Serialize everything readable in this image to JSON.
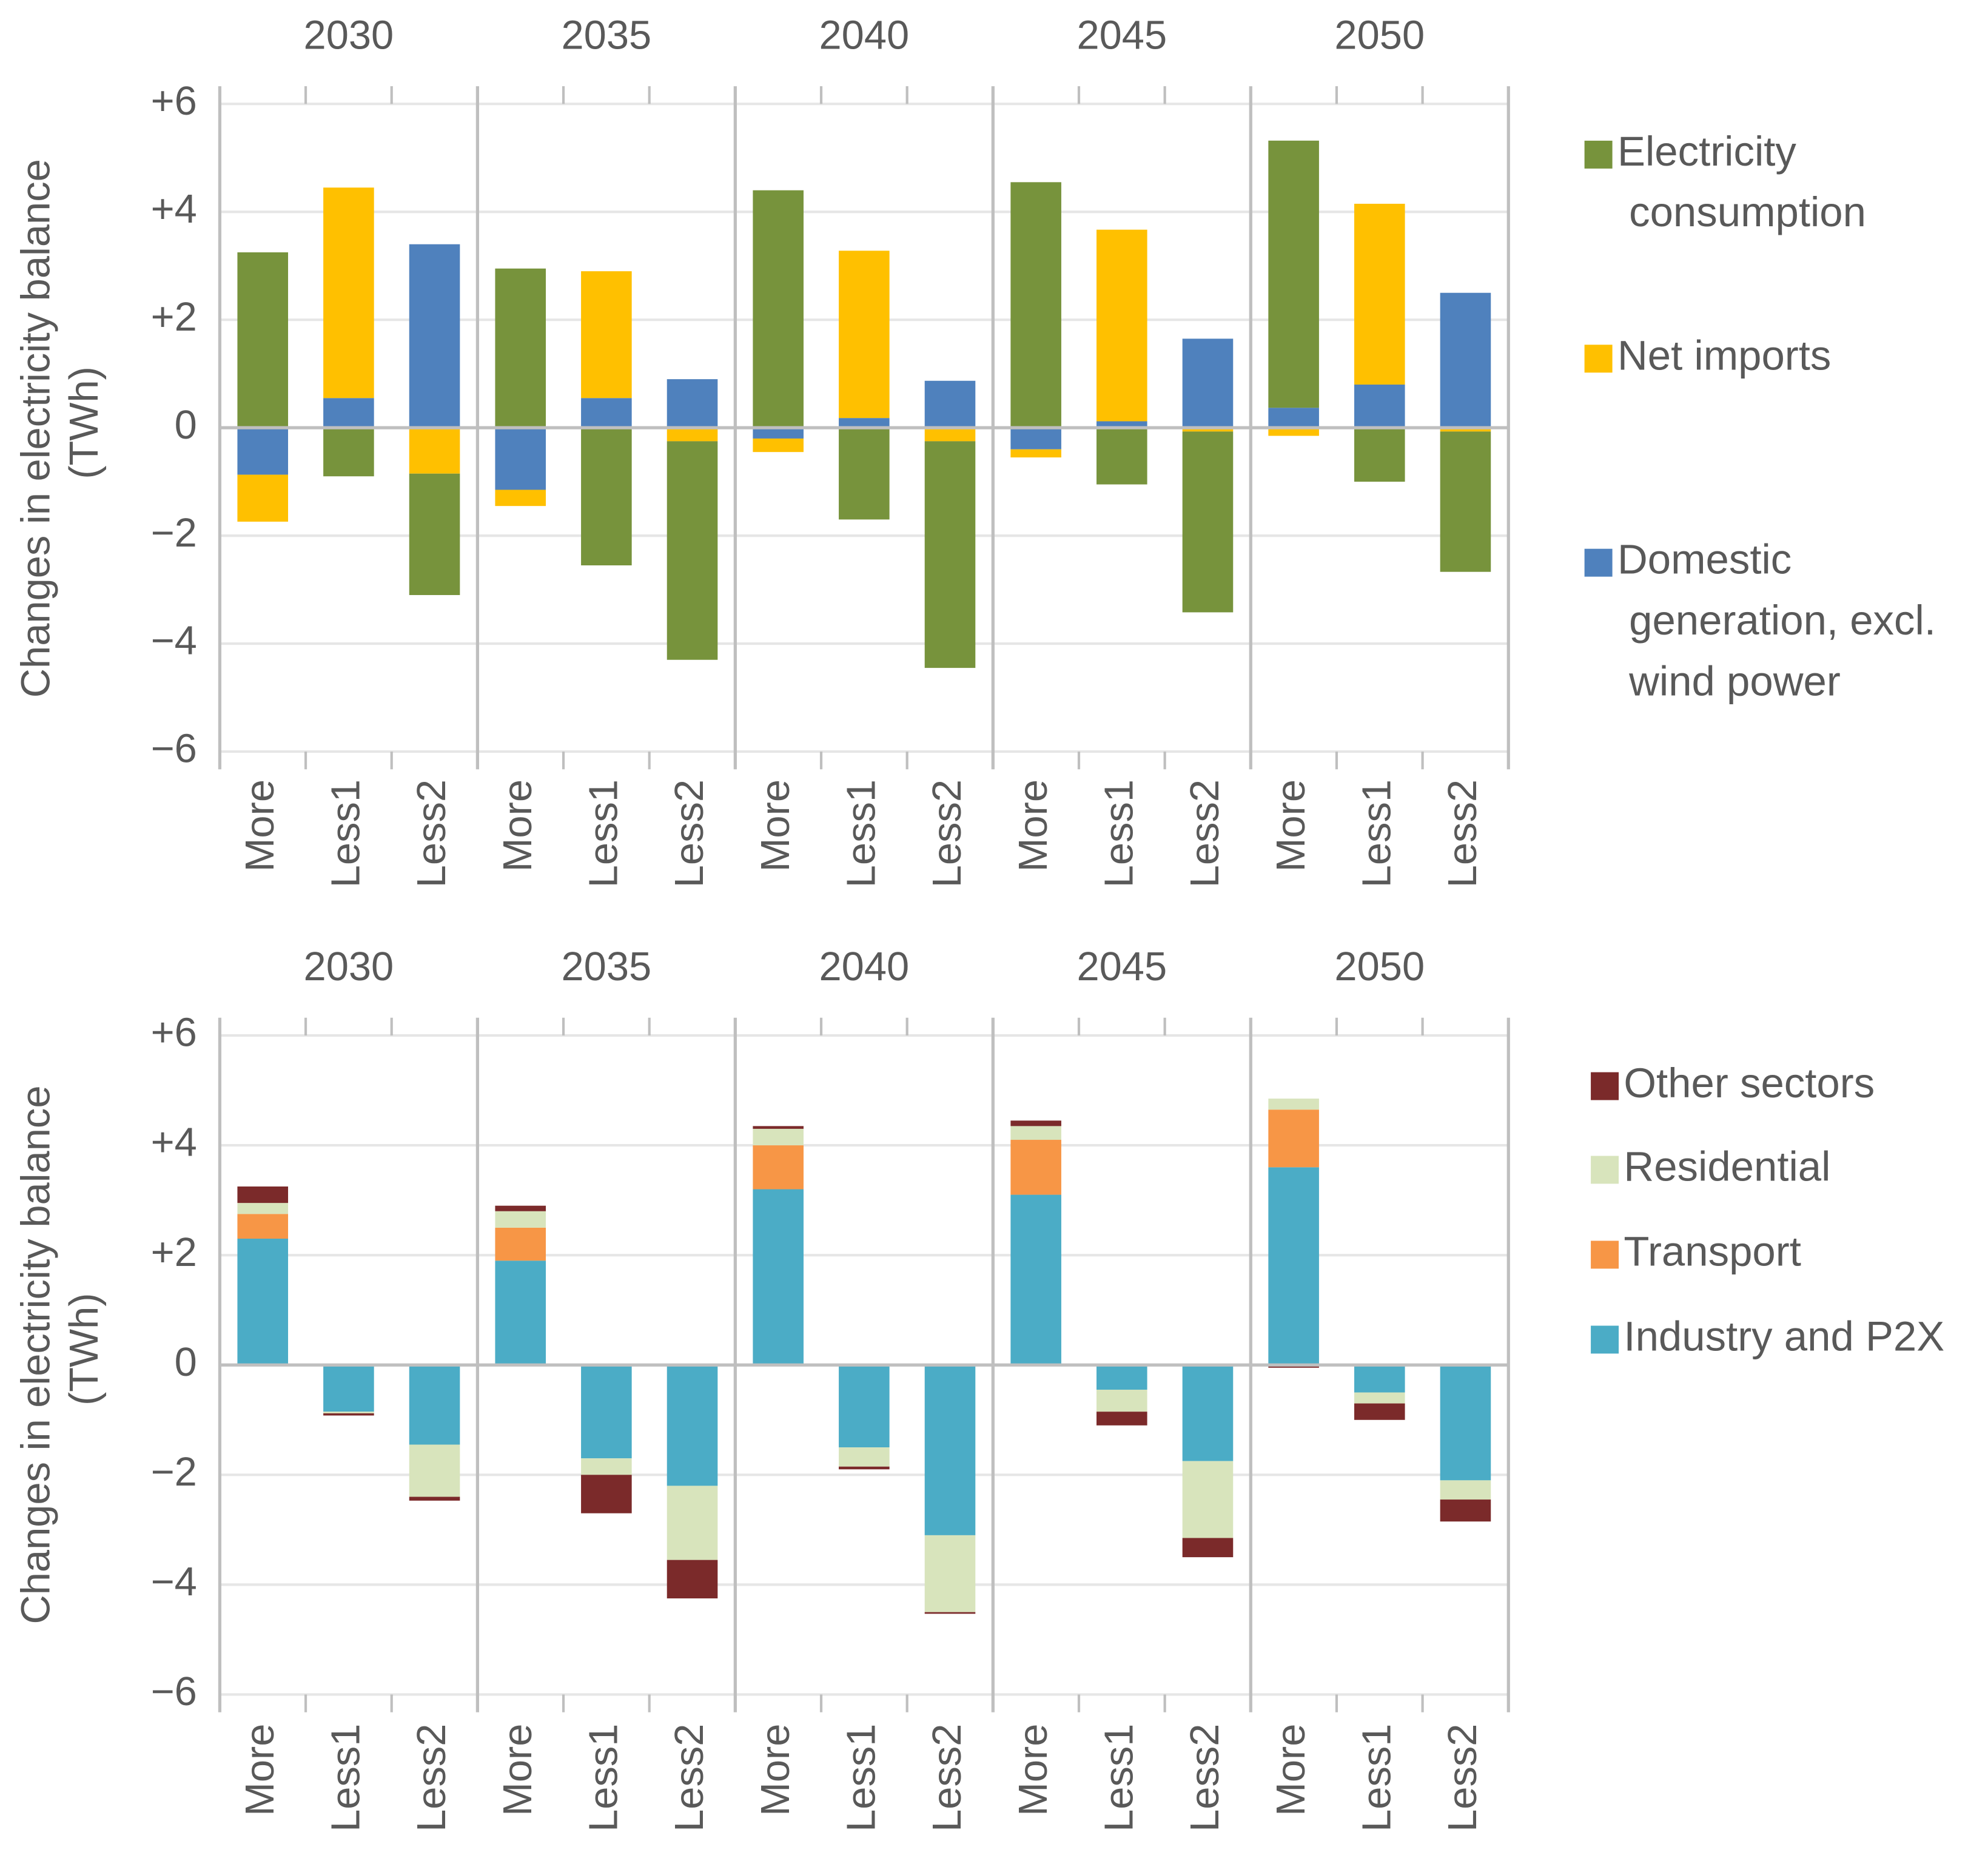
{
  "chart_data": [
    {
      "type": "bar",
      "stacked": true,
      "y_label": "Changes in electricity balance (TWh)",
      "groups": [
        "2030",
        "2035",
        "2040",
        "2045",
        "2050"
      ],
      "categories": [
        "More",
        "Less1",
        "Less2",
        "More",
        "Less1",
        "Less2",
        "More",
        "Less1",
        "Less2",
        "More",
        "Less1",
        "Less2",
        "More",
        "Less1",
        "Less2"
      ],
      "series": [
        {
          "name": "Electricity consumption",
          "color": "#77933c",
          "values": [
            3.25,
            -0.9,
            -2.25,
            2.95,
            -2.55,
            -4.05,
            4.4,
            -1.7,
            -4.2,
            4.55,
            -1.05,
            -3.35,
            4.95,
            -1.0,
            -2.6
          ]
        },
        {
          "name": "Net imports",
          "color": "#ffc000",
          "values": [
            -0.87,
            3.9,
            -0.85,
            -0.3,
            2.35,
            -0.25,
            -0.25,
            3.1,
            -0.25,
            -0.15,
            3.55,
            -0.07,
            -0.15,
            3.35,
            -0.07
          ]
        },
        {
          "name": "Domestic generation, excl. wind power",
          "color": "#4f81bd",
          "values": [
            -0.87,
            0.55,
            3.4,
            -1.15,
            0.55,
            0.9,
            -0.2,
            0.18,
            0.87,
            -0.4,
            0.12,
            1.65,
            0.37,
            0.8,
            2.5
          ]
        }
      ],
      "ylim": [
        -6,
        6
      ],
      "yticks": [
        {
          "value": -6,
          "label": "−6"
        },
        {
          "value": -4,
          "label": "−4"
        },
        {
          "value": -2,
          "label": "−2"
        },
        0,
        {
          "value": 2,
          "label": "+2"
        },
        {
          "value": 4,
          "label": "+4"
        },
        {
          "value": 6,
          "label": "+6"
        }
      ],
      "grid": true
    },
    {
      "type": "bar",
      "stacked": true,
      "y_label": "Changes in electricity balance (TWh)",
      "groups": [
        "2030",
        "2035",
        "2040",
        "2045",
        "2050"
      ],
      "categories": [
        "More",
        "Less1",
        "Less2",
        "More",
        "Less1",
        "Less2",
        "More",
        "Less1",
        "Less2",
        "More",
        "Less1",
        "Less2",
        "More",
        "Less1",
        "Less2"
      ],
      "series": [
        {
          "name": "Other sectors",
          "color": "#7b2a2a",
          "values": [
            0.3,
            -0.04,
            -0.07,
            0.1,
            -0.7,
            -0.7,
            0.05,
            -0.05,
            -0.03,
            0.1,
            -0.25,
            -0.35,
            -0.05,
            -0.3,
            -0.4
          ]
        },
        {
          "name": "Residential",
          "color": "#d8e4bc",
          "values": [
            0.2,
            -0.03,
            -0.95,
            0.3,
            -0.3,
            -1.35,
            0.3,
            -0.35,
            -1.4,
            0.25,
            -0.4,
            -1.4,
            0.2,
            -0.2,
            -0.35
          ]
        },
        {
          "name": "Transport",
          "color": "#f79646",
          "values": [
            0.45,
            0,
            0,
            0.6,
            0,
            0,
            0.8,
            0,
            0,
            1.0,
            0,
            0,
            1.05,
            0,
            0
          ]
        },
        {
          "name": "Industry and P2X",
          "color": "#4bacc6",
          "values": [
            2.3,
            -0.85,
            -1.45,
            1.9,
            -1.7,
            -2.2,
            3.2,
            -1.5,
            -3.1,
            3.1,
            -0.45,
            -1.75,
            3.6,
            -0.5,
            -2.1
          ]
        }
      ],
      "ylim": [
        -6,
        6
      ],
      "yticks": [
        {
          "value": -6,
          "label": "−6"
        },
        {
          "value": -4,
          "label": "−4"
        },
        {
          "value": -2,
          "label": "−2"
        },
        0,
        {
          "value": 2,
          "label": "+2"
        },
        {
          "value": 4,
          "label": "+4"
        },
        {
          "value": 6,
          "label": "+6"
        }
      ],
      "grid": true
    }
  ]
}
